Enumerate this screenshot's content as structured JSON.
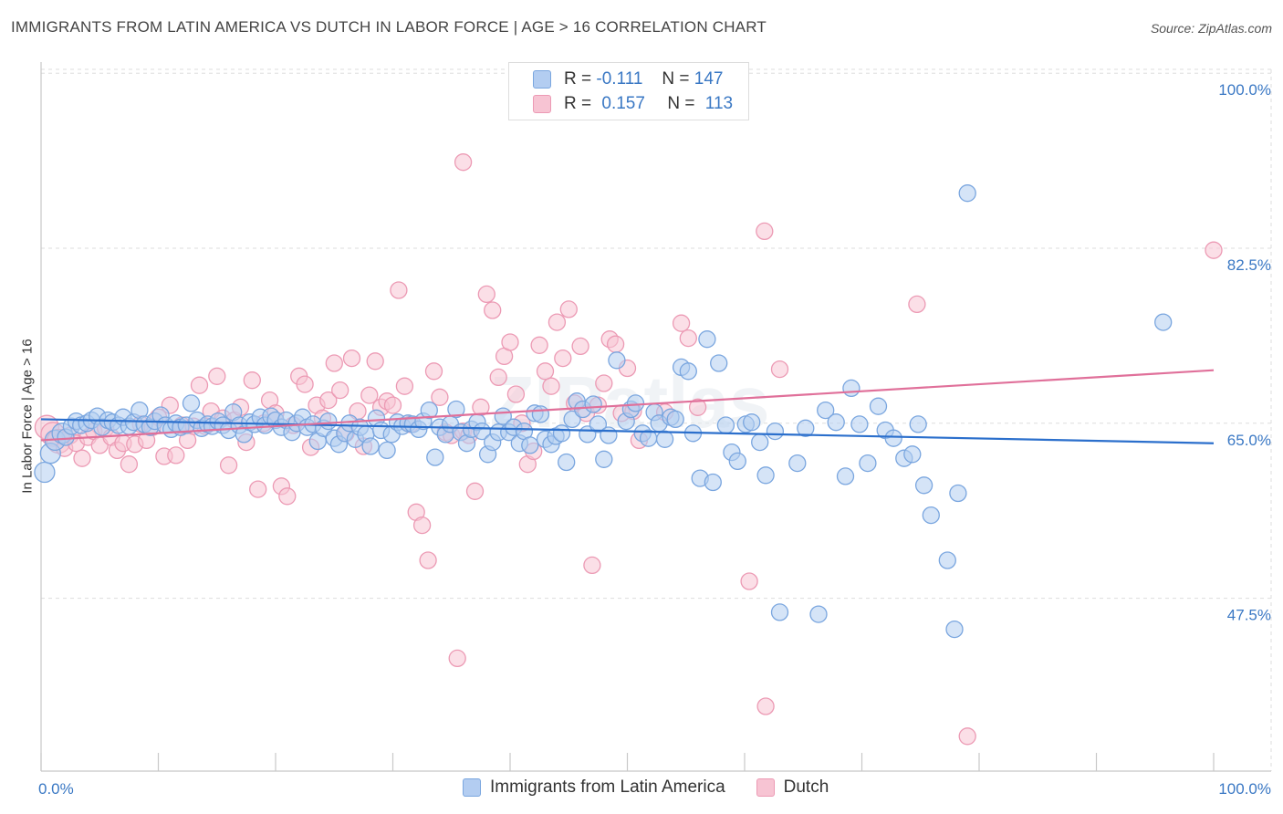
{
  "title": "IMMIGRANTS FROM LATIN AMERICA VS DUTCH IN LABOR FORCE | AGE > 16 CORRELATION CHART",
  "source": "Source: ZipAtlas.com",
  "watermark": "ZIPatlas",
  "colors": {
    "blue_fill": "#b3cdf1",
    "blue_stroke": "#7aa6df",
    "blue_line": "#2b6fcc",
    "pink_fill": "#f7c4d3",
    "pink_stroke": "#ec9ab4",
    "pink_line": "#e0709a",
    "grid": "#dddddd",
    "tick_text": "#3a78c4"
  },
  "legend": {
    "rows": [
      {
        "r_label": "R =",
        "r_value": "-0.111",
        "n_label": "N =",
        "n_value": "147"
      },
      {
        "r_label": "R =",
        "r_value": "0.157",
        "n_label": "N =",
        "n_value": "113"
      }
    ]
  },
  "bottom_legend": [
    "Immigrants from Latin America",
    "Dutch"
  ],
  "chart_data": {
    "type": "scatter",
    "title": "IMMIGRANTS FROM LATIN AMERICA VS DUTCH IN LABOR FORCE | AGE > 16 CORRELATION CHART",
    "xlabel": "",
    "ylabel": "In Labor Force | Age > 16",
    "xlim": [
      0,
      100
    ],
    "ylim": [
      30,
      102
    ],
    "x_tick_labels": [
      "0.0%",
      "100.0%"
    ],
    "y_ticks": [
      47.5,
      65.0,
      82.5,
      100.0
    ],
    "y_tick_labels": [
      "47.5%",
      "65.0%",
      "82.5%",
      "100.0%"
    ],
    "grid": true,
    "legend_position": "top-center",
    "series": [
      {
        "name": "Immigrants from Latin America",
        "r": -0.111,
        "n": 147,
        "trend": {
          "x": [
            0,
            100
          ],
          "y": [
            65.4,
            63.0
          ]
        },
        "points": [
          [
            0.3,
            60.1
          ],
          [
            0.8,
            62.0
          ],
          [
            1.2,
            63.3
          ],
          [
            1.8,
            64.0
          ],
          [
            2.1,
            63.6
          ],
          [
            2.6,
            64.7
          ],
          [
            3.0,
            65.2
          ],
          [
            3.4,
            64.8
          ],
          [
            3.9,
            65.0
          ],
          [
            4.3,
            65.3
          ],
          [
            4.8,
            65.7
          ],
          [
            5.2,
            64.6
          ],
          [
            5.7,
            65.3
          ],
          [
            6.1,
            65.1
          ],
          [
            6.6,
            64.8
          ],
          [
            7.0,
            65.6
          ],
          [
            7.5,
            64.7
          ],
          [
            7.9,
            65.1
          ],
          [
            8.4,
            66.3
          ],
          [
            8.8,
            64.9
          ],
          [
            9.3,
            64.6
          ],
          [
            9.7,
            65.2
          ],
          [
            10.2,
            65.8
          ],
          [
            10.6,
            64.8
          ],
          [
            11.1,
            64.4
          ],
          [
            11.5,
            65.0
          ],
          [
            11.9,
            64.6
          ],
          [
            12.4,
            64.8
          ],
          [
            12.8,
            67.0
          ],
          [
            13.3,
            65.3
          ],
          [
            13.7,
            64.5
          ],
          [
            14.2,
            64.9
          ],
          [
            14.6,
            64.7
          ],
          [
            15.1,
            65.2
          ],
          [
            15.5,
            64.8
          ],
          [
            16.0,
            64.3
          ],
          [
            16.4,
            66.1
          ],
          [
            16.9,
            64.8
          ],
          [
            17.3,
            63.9
          ],
          [
            17.8,
            65.1
          ],
          [
            18.2,
            64.9
          ],
          [
            18.7,
            65.6
          ],
          [
            19.1,
            64.8
          ],
          [
            19.6,
            65.7
          ],
          [
            20.0,
            65.3
          ],
          [
            20.5,
            64.6
          ],
          [
            20.9,
            65.3
          ],
          [
            21.4,
            64.1
          ],
          [
            21.8,
            65.0
          ],
          [
            22.3,
            65.6
          ],
          [
            22.7,
            64.6
          ],
          [
            23.2,
            64.9
          ],
          [
            23.6,
            63.2
          ],
          [
            24.1,
            64.5
          ],
          [
            24.5,
            65.2
          ],
          [
            25.0,
            63.5
          ],
          [
            25.4,
            62.9
          ],
          [
            25.9,
            64.0
          ],
          [
            26.3,
            65.0
          ],
          [
            26.8,
            63.4
          ],
          [
            27.2,
            64.6
          ],
          [
            27.7,
            63.9
          ],
          [
            28.1,
            62.7
          ],
          [
            28.6,
            65.5
          ],
          [
            29.0,
            64.3
          ],
          [
            29.5,
            62.3
          ],
          [
            29.9,
            63.9
          ],
          [
            30.4,
            65.1
          ],
          [
            30.8,
            64.7
          ],
          [
            31.3,
            65.0
          ],
          [
            31.7,
            64.9
          ],
          [
            32.2,
            64.4
          ],
          [
            32.6,
            65.2
          ],
          [
            33.1,
            66.3
          ],
          [
            33.6,
            61.6
          ],
          [
            34.0,
            64.6
          ],
          [
            34.5,
            63.9
          ],
          [
            34.9,
            64.9
          ],
          [
            35.4,
            66.4
          ],
          [
            35.8,
            64.1
          ],
          [
            36.3,
            63.0
          ],
          [
            36.7,
            64.4
          ],
          [
            37.2,
            65.1
          ],
          [
            37.6,
            64.2
          ],
          [
            38.1,
            61.9
          ],
          [
            38.5,
            63.1
          ],
          [
            39.0,
            64.1
          ],
          [
            39.4,
            65.7
          ],
          [
            39.9,
            64.1
          ],
          [
            40.3,
            64.6
          ],
          [
            40.8,
            63.0
          ],
          [
            41.2,
            64.2
          ],
          [
            41.7,
            62.8
          ],
          [
            42.1,
            66.0
          ],
          [
            42.6,
            65.9
          ],
          [
            43.0,
            63.4
          ],
          [
            43.5,
            62.9
          ],
          [
            43.9,
            63.7
          ],
          [
            44.4,
            64.0
          ],
          [
            44.8,
            61.1
          ],
          [
            45.3,
            65.4
          ],
          [
            45.7,
            67.2
          ],
          [
            46.2,
            66.4
          ],
          [
            46.6,
            63.9
          ],
          [
            47.1,
            66.9
          ],
          [
            47.5,
            64.9
          ],
          [
            48.0,
            61.4
          ],
          [
            48.4,
            63.8
          ],
          [
            49.1,
            71.3
          ],
          [
            49.9,
            65.2
          ],
          [
            50.3,
            66.4
          ],
          [
            50.7,
            67.0
          ],
          [
            51.3,
            64.0
          ],
          [
            51.8,
            63.5
          ],
          [
            52.3,
            66.1
          ],
          [
            52.7,
            65.0
          ],
          [
            53.2,
            63.4
          ],
          [
            53.7,
            65.6
          ],
          [
            54.1,
            65.4
          ],
          [
            54.6,
            70.6
          ],
          [
            55.2,
            70.2
          ],
          [
            55.6,
            64.0
          ],
          [
            56.2,
            59.5
          ],
          [
            56.8,
            73.4
          ],
          [
            57.3,
            59.1
          ],
          [
            57.8,
            71.0
          ],
          [
            58.4,
            64.8
          ],
          [
            58.9,
            62.1
          ],
          [
            59.4,
            61.2
          ],
          [
            60.1,
            64.9
          ],
          [
            60.6,
            65.1
          ],
          [
            61.3,
            63.1
          ],
          [
            61.8,
            59.8
          ],
          [
            62.6,
            64.2
          ],
          [
            63.0,
            46.1
          ],
          [
            64.5,
            61.0
          ],
          [
            65.2,
            64.5
          ],
          [
            66.3,
            45.9
          ],
          [
            66.9,
            66.3
          ],
          [
            67.8,
            65.1
          ],
          [
            68.6,
            59.7
          ],
          [
            69.1,
            68.5
          ],
          [
            69.8,
            64.9
          ],
          [
            70.5,
            61.0
          ],
          [
            71.4,
            66.7
          ],
          [
            72.0,
            64.3
          ],
          [
            72.7,
            63.5
          ],
          [
            73.6,
            61.5
          ],
          [
            74.3,
            61.9
          ],
          [
            74.8,
            64.9
          ],
          [
            75.3,
            58.8
          ],
          [
            75.9,
            55.8
          ],
          [
            77.3,
            51.3
          ],
          [
            77.9,
            44.4
          ],
          [
            78.2,
            58.0
          ],
          [
            79.0,
            88.0
          ],
          [
            95.7,
            75.1
          ]
        ]
      },
      {
        "name": "Dutch",
        "r": 0.157,
        "n": 113,
        "trend": {
          "x": [
            0,
            100
          ],
          "y": [
            63.3,
            70.3
          ]
        },
        "points": [
          [
            0.5,
            64.6
          ],
          [
            1.0,
            63.9
          ],
          [
            1.5,
            63.2
          ],
          [
            2.0,
            62.5
          ],
          [
            2.5,
            63.8
          ],
          [
            3.0,
            63.0
          ],
          [
            3.5,
            61.5
          ],
          [
            4.0,
            63.6
          ],
          [
            4.5,
            64.2
          ],
          [
            5.0,
            62.8
          ],
          [
            5.5,
            64.5
          ],
          [
            6.0,
            63.6
          ],
          [
            6.5,
            62.3
          ],
          [
            7.0,
            63.0
          ],
          [
            7.5,
            60.9
          ],
          [
            8.0,
            62.9
          ],
          [
            8.5,
            64.9
          ],
          [
            9.0,
            63.3
          ],
          [
            9.5,
            64.6
          ],
          [
            10.0,
            65.6
          ],
          [
            10.5,
            61.7
          ],
          [
            11.0,
            66.8
          ],
          [
            11.5,
            61.8
          ],
          [
            12.0,
            64.8
          ],
          [
            12.5,
            63.3
          ],
          [
            13.0,
            64.7
          ],
          [
            13.5,
            68.8
          ],
          [
            14.0,
            64.7
          ],
          [
            14.5,
            66.2
          ],
          [
            15.0,
            69.7
          ],
          [
            15.5,
            65.5
          ],
          [
            16.0,
            60.8
          ],
          [
            16.5,
            65.3
          ],
          [
            17.0,
            66.6
          ],
          [
            17.5,
            63.1
          ],
          [
            18.0,
            69.3
          ],
          [
            18.5,
            58.4
          ],
          [
            19.0,
            65.0
          ],
          [
            19.5,
            67.3
          ],
          [
            20.0,
            66.0
          ],
          [
            20.5,
            58.7
          ],
          [
            21.0,
            57.7
          ],
          [
            21.5,
            64.8
          ],
          [
            22.0,
            69.7
          ],
          [
            22.5,
            68.9
          ],
          [
            23.0,
            62.6
          ],
          [
            23.5,
            66.8
          ],
          [
            24.0,
            65.5
          ],
          [
            24.5,
            67.3
          ],
          [
            25.0,
            71.0
          ],
          [
            25.5,
            68.3
          ],
          [
            26.0,
            64.0
          ],
          [
            26.5,
            71.5
          ],
          [
            27.0,
            66.2
          ],
          [
            27.5,
            62.7
          ],
          [
            28.0,
            67.8
          ],
          [
            28.5,
            71.2
          ],
          [
            29.0,
            66.6
          ],
          [
            29.5,
            67.2
          ],
          [
            30.0,
            66.8
          ],
          [
            30.5,
            78.3
          ],
          [
            31.0,
            68.7
          ],
          [
            31.5,
            64.9
          ],
          [
            32.0,
            56.1
          ],
          [
            32.5,
            54.8
          ],
          [
            33.0,
            51.3
          ],
          [
            33.5,
            70.2
          ],
          [
            34.0,
            67.6
          ],
          [
            34.5,
            64.1
          ],
          [
            35.0,
            63.8
          ],
          [
            35.5,
            41.5
          ],
          [
            36.0,
            64.2
          ],
          [
            36.5,
            63.8
          ],
          [
            37.0,
            58.2
          ],
          [
            37.5,
            66.6
          ],
          [
            38.0,
            77.9
          ],
          [
            38.5,
            76.3
          ],
          [
            39.0,
            69.6
          ],
          [
            39.5,
            71.7
          ],
          [
            40.0,
            73.1
          ],
          [
            40.5,
            67.9
          ],
          [
            41.0,
            65.0
          ],
          [
            41.5,
            60.9
          ],
          [
            42.0,
            62.2
          ],
          [
            42.5,
            72.8
          ],
          [
            43.0,
            70.2
          ],
          [
            43.5,
            68.7
          ],
          [
            44.0,
            75.1
          ],
          [
            44.5,
            71.5
          ],
          [
            45.0,
            76.4
          ],
          [
            45.5,
            67.0
          ],
          [
            46.0,
            72.7
          ],
          [
            46.5,
            66.0
          ],
          [
            47.0,
            50.8
          ],
          [
            47.5,
            66.8
          ],
          [
            48.0,
            69.0
          ],
          [
            48.5,
            73.4
          ],
          [
            49.0,
            72.9
          ],
          [
            49.5,
            66.0
          ],
          [
            50.0,
            70.5
          ],
          [
            50.5,
            66.2
          ],
          [
            51.0,
            63.3
          ],
          [
            53.2,
            66.1
          ],
          [
            54.6,
            75.0
          ],
          [
            55.2,
            73.5
          ],
          [
            56.0,
            66.6
          ],
          [
            60.4,
            49.2
          ],
          [
            61.7,
            84.2
          ],
          [
            61.8,
            36.7
          ],
          [
            63.0,
            70.4
          ],
          [
            74.7,
            76.9
          ],
          [
            79.0,
            33.7
          ],
          [
            100.0,
            82.3
          ],
          [
            36.0,
            91.1
          ]
        ]
      }
    ]
  }
}
